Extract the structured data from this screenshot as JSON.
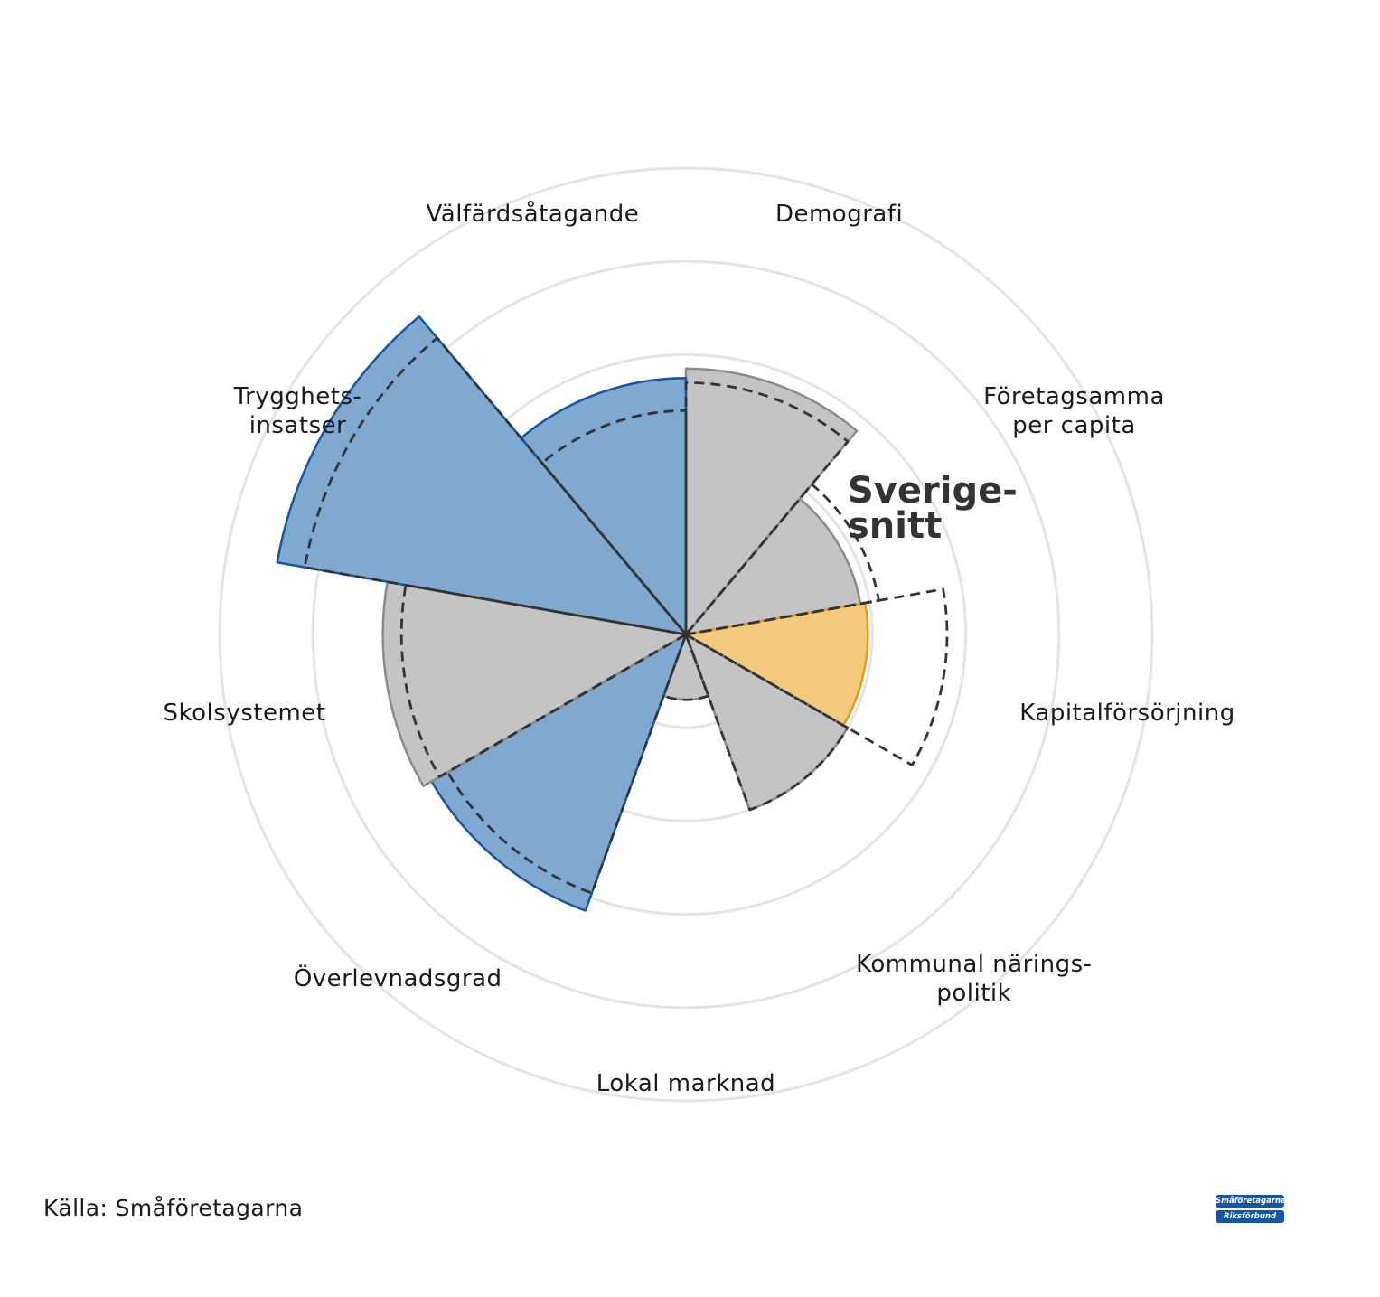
{
  "chart_data": {
    "type": "polar-bar",
    "categories": [
      "Demografi",
      "Företagsamma per capita",
      "Kapitalförsörjning",
      "Kommunal näringspolitik",
      "Lokal marknad",
      "Överlevnadsgrad",
      "Skolsystemet",
      "Trygghetsinsatser",
      "Välfärdsåtagande"
    ],
    "label_lines": [
      [
        "Demografi"
      ],
      [
        "Företagsamma",
        "per capita"
      ],
      [
        "Kapitalförsörjning"
      ],
      [
        "Kommunal närings-",
        "politik"
      ],
      [
        "Lokal marknad"
      ],
      [
        "Överlevnadsgrad"
      ],
      [
        "Skolsystemet"
      ],
      [
        "Trygghets-",
        "insatser"
      ],
      [
        "Välfärdsåtagande"
      ]
    ],
    "series": [
      {
        "values": [
          5.7,
          3.8,
          3.9,
          4.0,
          1.4,
          6.3,
          6.5,
          8.9,
          5.5
        ]
      },
      {
        "values": [
          5.4,
          4.2,
          5.6,
          4.0,
          1.4,
          5.9,
          6.1,
          8.3,
          4.8
        ]
      }
    ],
    "series_style": {
      "fill_colors": [
        "#c4c4c4",
        "#c4c4c4",
        "#f3c97d",
        "#c4c4c4",
        "#c4c4c4",
        "#7fa9cf",
        "#c4c4c4",
        "#7fa9cf",
        "#7fa9cf"
      ],
      "edge_colors": [
        "#8a8a8a",
        "#8a8a8a",
        "#e69a1c",
        "#8a8a8a",
        "#8a8a8a",
        "#1456a0",
        "#8a8a8a",
        "#1456a0",
        "#1456a0"
      ],
      "average_line_color": "#333333",
      "grid_color": "#e4e4e4"
    },
    "radial_max": 10,
    "grid_rings": [
      2,
      4,
      6,
      8,
      10
    ],
    "average_label": [
      "Sverige-",
      "snitt"
    ]
  },
  "footer": {
    "source": "Källa: Småföretagarna",
    "logo_text": [
      "Småföretagarnas",
      "Riksförbund"
    ]
  }
}
